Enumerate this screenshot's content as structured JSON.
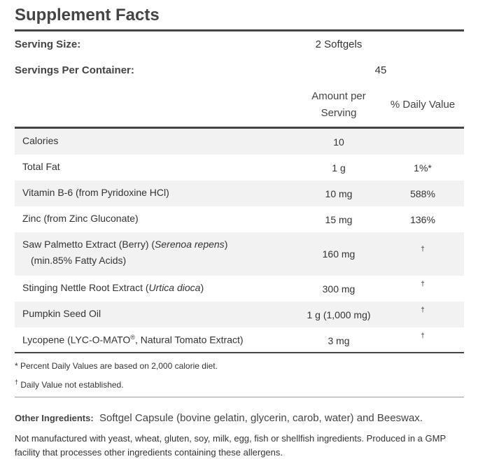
{
  "title": "Supplement Facts",
  "serving_size": {
    "label": "Serving Size:",
    "value": "2 Softgels"
  },
  "servings_per_container": {
    "label": "Servings Per Container:",
    "value": "45"
  },
  "table": {
    "headers": [
      "Amount per Serving",
      "% Daily Value"
    ],
    "rows": [
      {
        "name": [
          "Calories"
        ],
        "amount": "10"
      },
      {
        "name": [
          "Total Fat"
        ],
        "amount": "1 g",
        "daily_value": "1%*"
      },
      {
        "name": [
          "Vitamin B-6 (from Pyridoxine HCl)"
        ],
        "amount": "10 mg",
        "daily_value": "588%"
      },
      {
        "name": [
          "Zinc (from Zinc Gluconate)"
        ],
        "amount": "15 mg",
        "daily_value": "136%"
      },
      {
        "name": [
          "Saw Palmetto Extract (Berry) (",
          "Serenoa repens",
          ")"
        ],
        "note": "(min.85% Fatty Acids)",
        "amount": "160 mg",
        "daily_value": "†"
      },
      {
        "name": [
          "Stinging Nettle Root Extract (",
          "Urtica dioca",
          ")"
        ],
        "amount": "300 mg",
        "daily_value": "†"
      },
      {
        "name": [
          "Pumpkin Seed Oil"
        ],
        "amount": "1 g (1,000 mg)",
        "daily_value": "†"
      },
      {
        "name": [
          "Lycopene (LYC-O-MATO",
          "®",
          ", Natural Tomato Extract)"
        ],
        "amount": "3 mg",
        "daily_value": "†"
      }
    ]
  },
  "footnotes": [
    {
      "text": "* Percent Daily Values are based on 2,000 calorie diet."
    },
    {
      "mark": "†",
      "text": "Daily Value not established."
    }
  ],
  "other_ingredients": {
    "label": "Other Ingredients:",
    "text": "Softgel Capsule (bovine gelatin, glycerin, carob, water) and Beeswax."
  },
  "allergen_note": "Not manufactured with yeast, wheat, gluten, soy, milk, egg, fish or shellfish ingredients. Produced in a GMP facility that processes other ingredients containing these allergens."
}
